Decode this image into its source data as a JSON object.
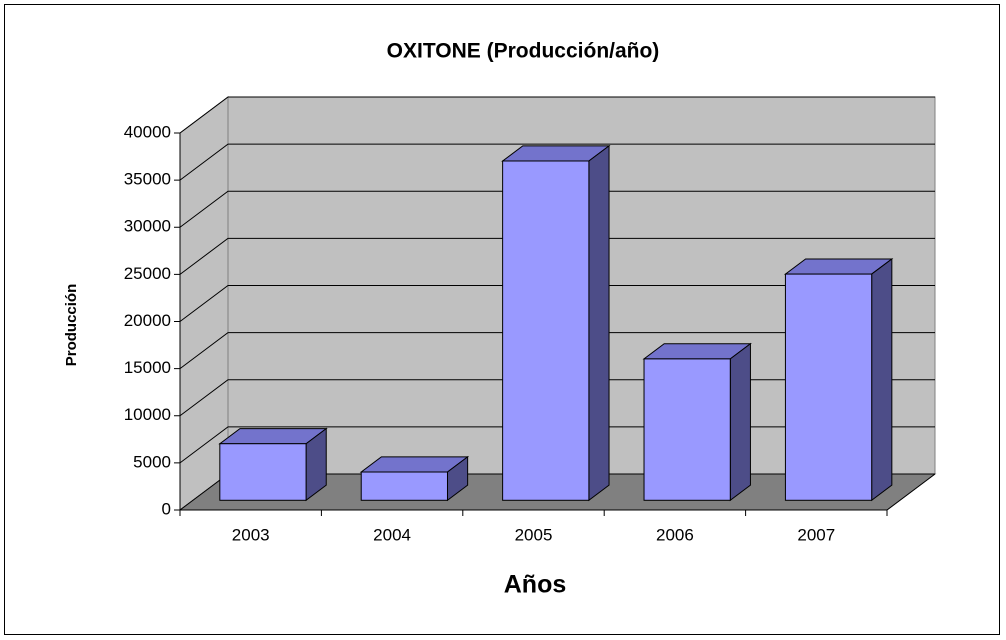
{
  "chart_data": {
    "type": "bar3d",
    "title": "OXITONE (Producción/año)",
    "x_label": "Años",
    "y_label": "Producción",
    "categories": [
      "2003",
      "2004",
      "2005",
      "2006",
      "2007"
    ],
    "values": [
      6000,
      3000,
      36000,
      15000,
      24000
    ],
    "color": "#9999ff",
    "ylim": [
      0,
      40000
    ],
    "yticks": [
      0,
      5000,
      10000,
      15000,
      20000,
      25000,
      30000,
      35000,
      40000
    ],
    "grid": true
  }
}
